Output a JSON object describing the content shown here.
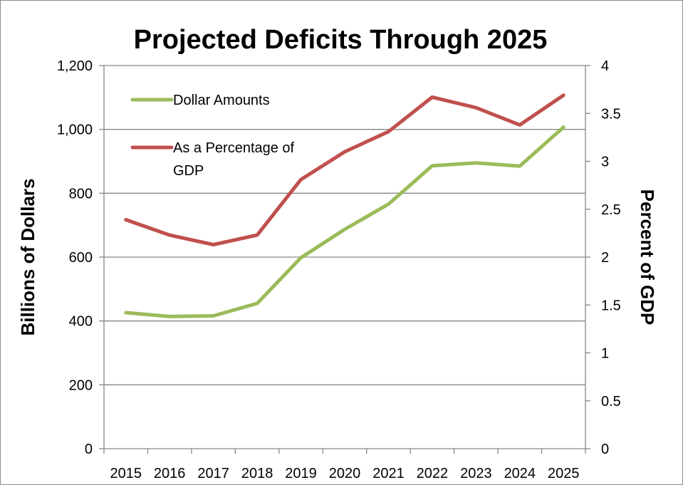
{
  "chart_data": {
    "type": "line",
    "title": "Projected Deficits Through 2025",
    "categories": [
      "2015",
      "2016",
      "2017",
      "2018",
      "2019",
      "2020",
      "2021",
      "2022",
      "2023",
      "2024",
      "2025"
    ],
    "ylabel_left": "Billions of Dollars",
    "ylabel_right": "Percent of GDP",
    "ylim_left": [
      0,
      1200
    ],
    "ylim_right": [
      0,
      4
    ],
    "yticks_left": [
      "0",
      "200",
      "400",
      "600",
      "800",
      "1,000",
      "1,200"
    ],
    "yticks_right": [
      "0",
      "0.5",
      "1",
      "1.5",
      "2",
      "2.5",
      "3",
      "3.5",
      "4"
    ],
    "grid": true,
    "legend_position": "top-left",
    "series": [
      {
        "name": "Dollar Amounts",
        "axis": "left",
        "color": "#9bbb59",
        "values": [
          426,
          414,
          416,
          455,
          598,
          687,
          766,
          886,
          895,
          885,
          1007
        ]
      },
      {
        "name": "As a Percentage of GDP",
        "legend_lines": [
          "As a Percentage of",
          "GDP"
        ],
        "axis": "right",
        "color": "#c0504d",
        "values": [
          2.39,
          2.23,
          2.13,
          2.23,
          2.81,
          3.1,
          3.31,
          3.67,
          3.56,
          3.38,
          3.69
        ]
      }
    ]
  }
}
